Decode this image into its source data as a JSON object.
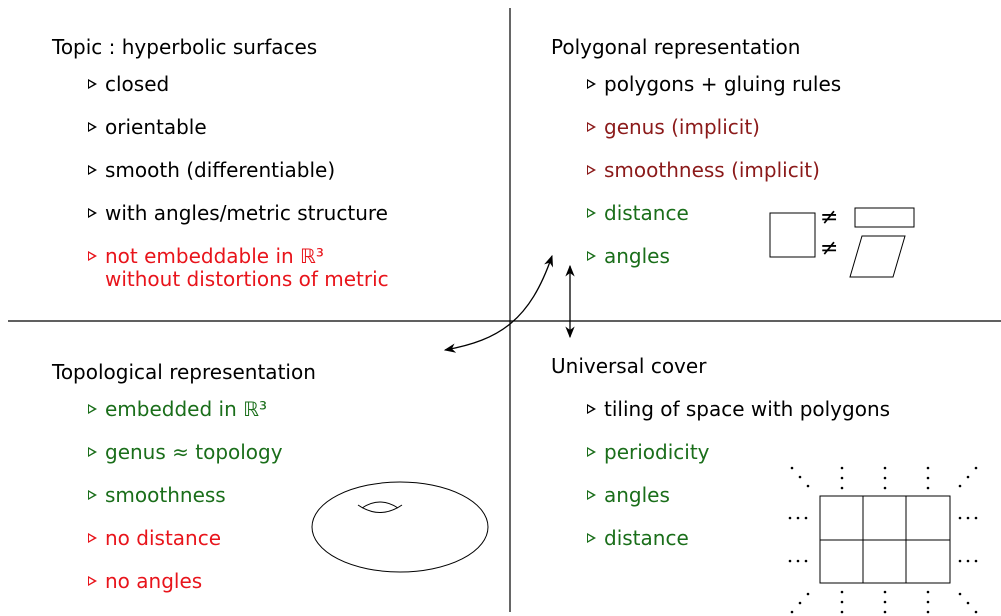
{
  "quadrants": [
    {
      "title": "Topic : hyperbolic surfaces",
      "items": [
        {
          "text": "closed",
          "color": "#000000"
        },
        {
          "text": "orientable",
          "color": "#000000"
        },
        {
          "text": "smooth (differentiable)",
          "color": "#000000"
        },
        {
          "text": "with angles/metric structure",
          "color": "#000000"
        },
        {
          "text": "not embeddable in ℝ³",
          "continuation": "without distortions of metric",
          "color": "#e8141b"
        }
      ]
    },
    {
      "title": "Polygonal representation",
      "items": [
        {
          "text": "polygons + gluing rules",
          "color": "#000000"
        },
        {
          "text": "genus (implicit)",
          "color": "#8b1a1a"
        },
        {
          "text": "smoothness (implicit)",
          "color": "#8b1a1a"
        },
        {
          "text": "distance",
          "color": "#1a6e1a"
        },
        {
          "text": "angles",
          "color": "#1a6e1a"
        }
      ]
    },
    {
      "title": "Topological representation",
      "items": [
        {
          "text": "embedded in ℝ³",
          "color": "#1a6e1a"
        },
        {
          "text": "genus ≈ topology",
          "color": "#1a6e1a"
        },
        {
          "text": "smoothness",
          "color": "#1a6e1a"
        },
        {
          "text": "no distance",
          "color": "#e8141b"
        },
        {
          "text": "no angles",
          "color": "#e8141b"
        }
      ]
    },
    {
      "title": "Universal cover",
      "items": [
        {
          "text": "tiling of space with polygons",
          "color": "#000000"
        },
        {
          "text": "periodicity",
          "color": "#1a6e1a"
        },
        {
          "text": "angles",
          "color": "#1a6e1a"
        },
        {
          "text": "distance",
          "color": "#1a6e1a"
        }
      ]
    }
  ],
  "neq": "≠"
}
